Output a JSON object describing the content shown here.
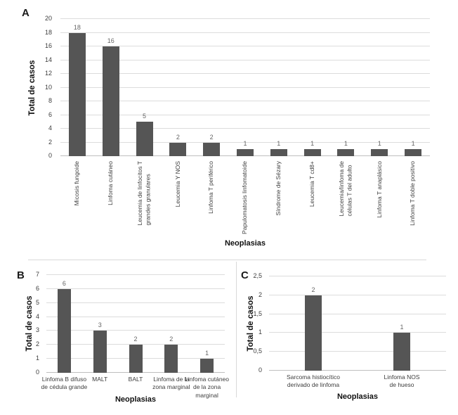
{
  "figure": {
    "background": "#ffffff",
    "bar_color": "#555555",
    "gridline_color": "#dcdcdc",
    "baseline_color": "#bfbfbf",
    "value_label_color": "#666666",
    "tick_label_color": "#3d3d3d"
  },
  "chart_data": [
    {
      "panel": "A",
      "type": "bar",
      "title": "",
      "xlabel": "Neoplasias",
      "ylabel": "Total de casos",
      "ylim": [
        0,
        20
      ],
      "ytick_step": 2,
      "yticks": [
        "0",
        "2",
        "4",
        "6",
        "8",
        "10",
        "12",
        "14",
        "16",
        "18",
        "20"
      ],
      "grid": true,
      "legend": false,
      "bar_labels": true,
      "xtick_rotation": 90,
      "categories": [
        "Micosis fungoide",
        "Linfoma cutáneo",
        "Leucemia de linfocitos T\ngrandes granulares",
        "Leucemia Y NOS",
        "Linfoma T periférico",
        "Papulomatosis linfomatoide",
        "Síndrome de Sézary",
        "Leucemia T cd8+",
        "Leucemia/linfoma de\ncélulas T del adulto",
        "Linfoma T anaplásico",
        "Linfoma T doble positivo"
      ],
      "values": [
        18,
        16,
        5,
        2,
        2,
        1,
        1,
        1,
        1,
        1,
        1
      ]
    },
    {
      "panel": "B",
      "type": "bar",
      "title": "",
      "xlabel": "Neoplasias",
      "ylabel": "Total de casos",
      "ylim": [
        0,
        7
      ],
      "ytick_step": 1,
      "yticks": [
        "0",
        "1",
        "2",
        "3",
        "4",
        "5",
        "6",
        "7"
      ],
      "grid": true,
      "legend": false,
      "bar_labels": true,
      "xtick_rotation": 0,
      "categories": [
        "Linfoma B difuso\nde cédula grande",
        "MALT",
        "BALT",
        "Linfoma de la\nzona marginal",
        "Linfoma cutáneo\nde la zona\nmarginal"
      ],
      "values": [
        6,
        3,
        2,
        2,
        1
      ]
    },
    {
      "panel": "C",
      "type": "bar",
      "title": "",
      "xlabel": "Neoplasias",
      "ylabel": "Total de casos",
      "ylim": [
        0,
        2.5
      ],
      "ytick_step": 0.5,
      "yticks": [
        "0",
        "0,5",
        "1",
        "1,5",
        "2",
        "2,5"
      ],
      "grid": true,
      "legend": false,
      "bar_labels": true,
      "xtick_rotation": 0,
      "categories": [
        "Sarcoma histiocítico\nderivado de linfoma",
        "Linfoma NOS\nde hueso"
      ],
      "values": [
        2,
        1
      ]
    }
  ]
}
